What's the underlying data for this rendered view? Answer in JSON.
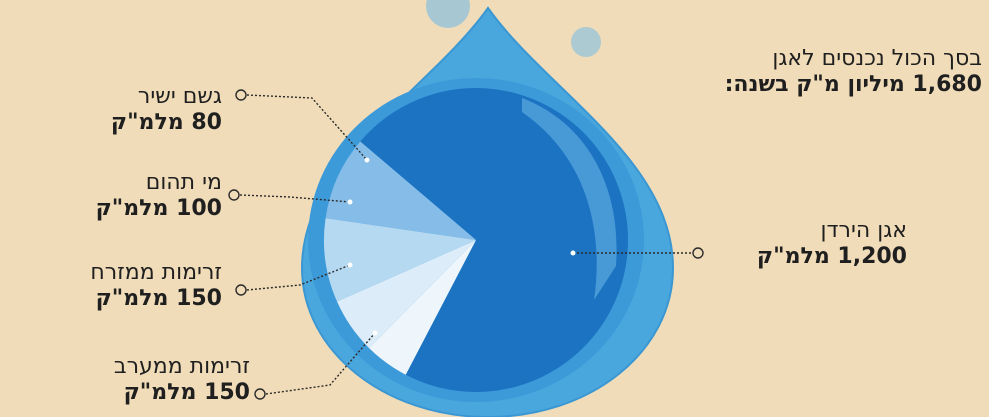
{
  "total": {
    "line1": "בסך הכול נכנסים לאגן",
    "line2": "1,680 מיליון מ\"ק בשנה:"
  },
  "chart_data": {
    "type": "pie",
    "total_value": 1680,
    "slices": [
      {
        "name": "אגן הירדן",
        "value_label": "1,200 מלמ\"ק",
        "value": 1200,
        "color": "#1b73c2"
      },
      {
        "name": "גשם ישיר",
        "value_label": "80 מלמ\"ק",
        "value": 80,
        "color": "#eef6fc"
      },
      {
        "name": "מי תהום",
        "value_label": "100 מלמ\"ק",
        "value": 100,
        "color": "#dcedf9"
      },
      {
        "name": "זרימות ממזרח",
        "value_label": "150 מלמ\"ק",
        "value": 150,
        "color": "#b6d9f2"
      },
      {
        "name": "זרימות ממערב",
        "value_label": "150 מלמ\"ק",
        "value": 150,
        "color": "#86bde8"
      }
    ]
  },
  "colors": {
    "background": "#f0dcb8",
    "drop_outer": "#4aa7dd",
    "drop_edge": "#2f8fcf",
    "bubble": "#8fc2dc"
  }
}
